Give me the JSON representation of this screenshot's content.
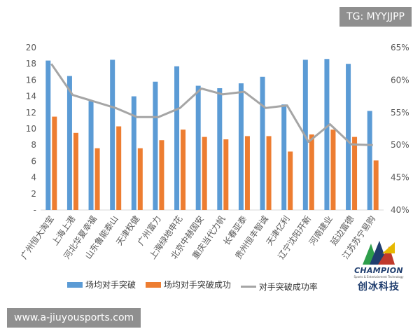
{
  "badges": {
    "tg": "TG: MYYJJPP",
    "site": "www.a-jiuyousports.com"
  },
  "logo": {
    "word": "CHAMPION",
    "subtitle": "Sports & Entertainment Technology",
    "chinese": "创冰科技"
  },
  "colors": {
    "bar1": "#5b9bd5",
    "bar2": "#ed7d31",
    "line": "#a5a5a5",
    "axis_text": "#595959"
  },
  "chart_data": {
    "type": "bar",
    "categories": [
      "广州恒大淘宝",
      "上海上港",
      "河北华夏幸福",
      "山东鲁能泰山",
      "天津权健",
      "广州富力",
      "上海绿地申花",
      "北京中赫国安",
      "重庆当代力帆",
      "长春亚泰",
      "贵州恒丰智诚",
      "天津亿利",
      "辽宁沈阳开新",
      "河南建业",
      "延边富德",
      "江苏苏宁易购"
    ],
    "series": [
      {
        "name": "场均对手突破",
        "axis": "left",
        "values": [
          18.4,
          16.5,
          13.4,
          18.5,
          14.0,
          15.8,
          17.7,
          15.3,
          15.0,
          15.6,
          16.4,
          13.0,
          18.5,
          18.6,
          18.0,
          12.2
        ]
      },
      {
        "name": "场均对手突破成功",
        "axis": "left",
        "values": [
          11.5,
          9.5,
          7.6,
          10.3,
          7.6,
          8.6,
          9.9,
          9.0,
          8.7,
          9.1,
          9.1,
          7.2,
          9.3,
          9.9,
          9.0,
          6.1
        ]
      },
      {
        "name": "对手突破成功率",
        "axis": "right",
        "type": "line",
        "values": [
          0.625,
          0.577,
          0.567,
          0.557,
          0.543,
          0.543,
          0.557,
          0.587,
          0.578,
          0.582,
          0.557,
          0.561,
          0.505,
          0.532,
          0.501,
          0.5
        ]
      }
    ],
    "y_left": {
      "ylim": [
        0,
        20
      ],
      "ticks": [
        "-",
        "2",
        "4",
        "6",
        "8",
        "10",
        "12",
        "14",
        "16",
        "18",
        "20"
      ]
    },
    "y_right": {
      "ylim": [
        0.4,
        0.65
      ],
      "ticks": [
        "40%",
        "45%",
        "50%",
        "55%",
        "60%",
        "65%"
      ]
    },
    "grid": false,
    "legend_position": "bottom"
  }
}
